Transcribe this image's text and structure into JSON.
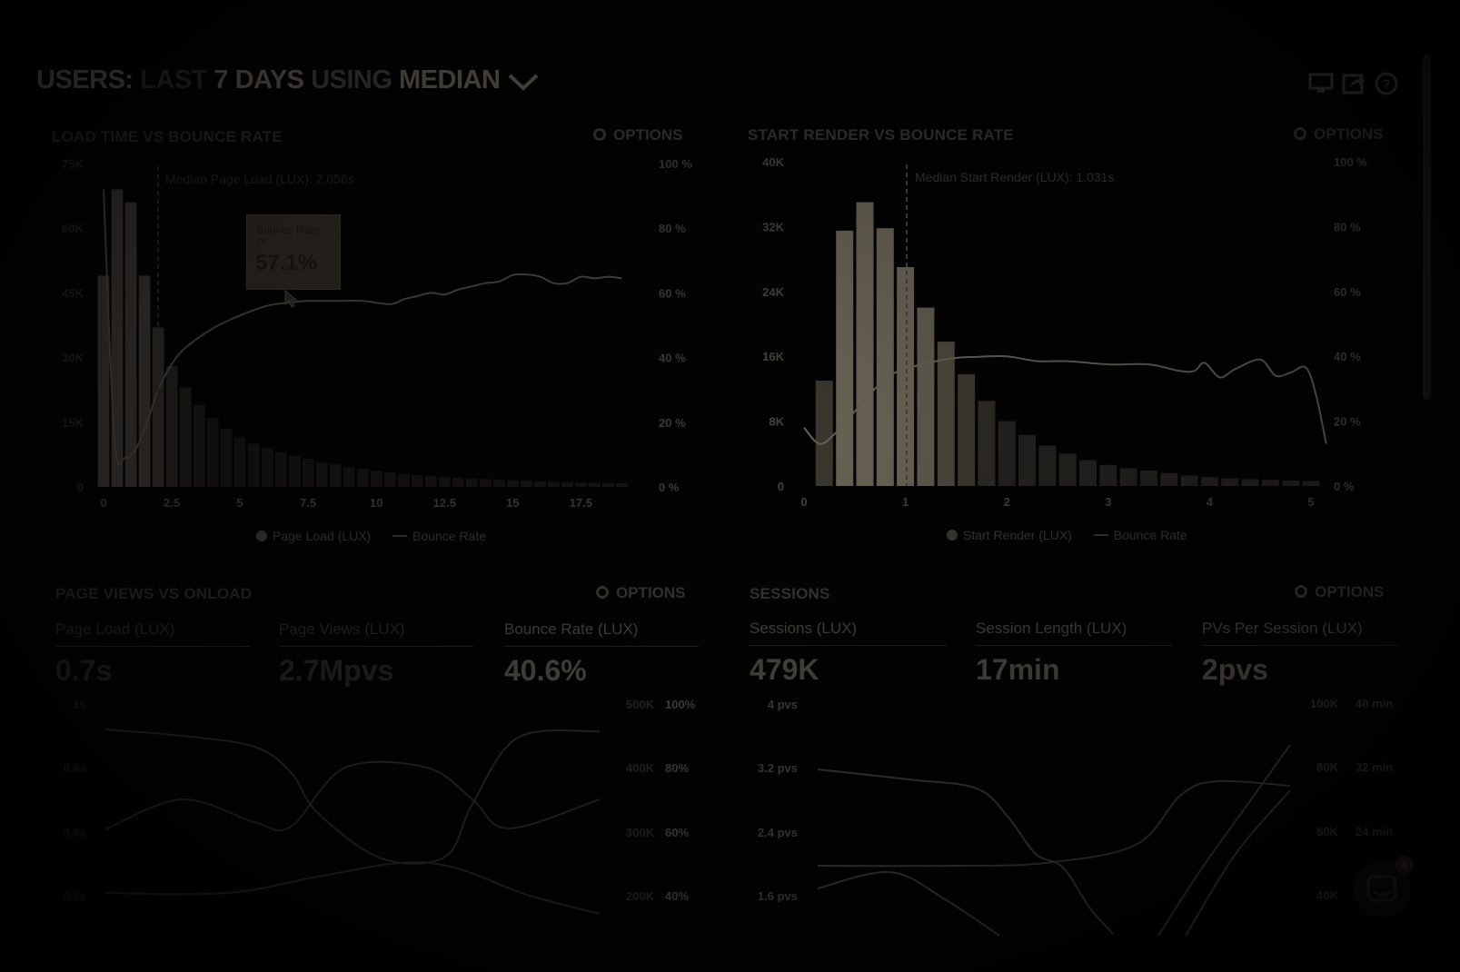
{
  "header": {
    "prefix": "USERS:",
    "range": "LAST",
    "days": "7 DAYS",
    "using": "USING",
    "aggregate": "MEDIAN"
  },
  "icons": [
    "monitor-icon",
    "share-icon",
    "help-icon"
  ],
  "options_label": "OPTIONS",
  "panels": {
    "load_time": {
      "title": "LOAD TIME VS BOUNCE RATE",
      "median_note": "Median Page Load (LUX): 2.056s",
      "tooltip": {
        "title": "Bounce Rate",
        "sub": "7s",
        "value": "57.1%"
      },
      "legend": [
        "Page Load (LUX)",
        "Bounce Rate"
      ]
    },
    "start_render": {
      "title": "START RENDER VS BOUNCE RATE",
      "median_note": "Median Start Render (LUX): 1.031s",
      "legend": [
        "Start Render (LUX)",
        "Bounce Rate"
      ]
    },
    "page_views": {
      "title": "PAGE VIEWS VS ONLOAD",
      "metrics": [
        {
          "label": "Page Load (LUX)",
          "value": "0.7s"
        },
        {
          "label": "Page Views (LUX)",
          "value": "2.7Mpvs"
        },
        {
          "label": "Bounce Rate (LUX)",
          "value": "40.6%"
        }
      ]
    },
    "sessions": {
      "title": "SESSIONS",
      "metrics": [
        {
          "label": "Sessions (LUX)",
          "value": "479K"
        },
        {
          "label": "Session Length (LUX)",
          "value": "17min"
        },
        {
          "label": "PVs Per Session (LUX)",
          "value": "2pvs"
        }
      ]
    }
  },
  "chat_badge": "4",
  "chart_data": [
    {
      "type": "bar",
      "title": "LOAD TIME VS BOUNCE RATE",
      "x_ticks": [
        "0",
        "2.5",
        "5",
        "7.5",
        "10",
        "12.5",
        "15",
        "17.5"
      ],
      "y_ticks_left": [
        "0",
        "15K",
        "30K",
        "45K",
        "60K",
        "75K"
      ],
      "y_ticks_right": [
        "0 %",
        "20 %",
        "40 %",
        "60 %",
        "80 %",
        "100 %"
      ],
      "ylim": [
        0,
        75000
      ],
      "y2lim": [
        0,
        100
      ],
      "xlim": [
        0,
        19.75
      ],
      "bar_width": 0.5,
      "series": [
        {
          "name": "Page Load (LUX)",
          "x": [
            0,
            0.5,
            1,
            1.5,
            2,
            2.5,
            3,
            3.5,
            4,
            4.5,
            5,
            5.5,
            6,
            6.5,
            7,
            7.5,
            8,
            8.5,
            9,
            9.5,
            10,
            10.5,
            11,
            11.5,
            12,
            12.5,
            13,
            13.5,
            14,
            14.5,
            15,
            15.5,
            16,
            16.5,
            17,
            17.5,
            18,
            18.5,
            19
          ],
          "values": [
            49000,
            69000,
            66000,
            49000,
            37000,
            28000,
            23000,
            19000,
            16000,
            13500,
            11500,
            10000,
            9000,
            8000,
            7200,
            6500,
            5800,
            5200,
            4600,
            4100,
            3700,
            3300,
            3000,
            2700,
            2500,
            2300,
            2100,
            1900,
            1800,
            1650,
            1500,
            1400,
            1300,
            1200,
            1100,
            1000,
            950,
            900,
            850
          ]
        },
        {
          "name": "Bounce Rate",
          "axis": "right",
          "x": [
            0,
            0.4,
            0.8,
            1.2,
            1.6,
            2,
            2.5,
            3,
            4,
            5,
            6,
            6.8,
            7.5,
            8.5,
            9.5,
            10.5,
            11,
            11.5,
            12,
            12.5,
            13,
            13.5,
            14,
            14.5,
            15,
            15.5,
            16,
            16.5,
            17,
            17.5,
            18,
            18.5,
            19
          ],
          "values": [
            92,
            15,
            9,
            12,
            20,
            30,
            38,
            43,
            49,
            53,
            56,
            57,
            57.5,
            57.5,
            57.5,
            56.5,
            58,
            59,
            60,
            59.5,
            61,
            62,
            63,
            63.5,
            65.5,
            65.7,
            65,
            63,
            63,
            65,
            64.5,
            65,
            64.5
          ]
        }
      ]
    },
    {
      "type": "bar",
      "title": "START RENDER VS BOUNCE RATE",
      "x_ticks": [
        "0",
        "1",
        "2",
        "3",
        "4",
        "5"
      ],
      "y_ticks_left": [
        "0",
        "8K",
        "16K",
        "24K",
        "32K",
        "40K"
      ],
      "y_ticks_right": [
        "0 %",
        "20 %",
        "40 %",
        "60 %",
        "80 %",
        "100 %"
      ],
      "ylim": [
        0,
        40000
      ],
      "y2lim": [
        0,
        100
      ],
      "xlim": [
        0,
        5
      ],
      "bar_width": 0.2,
      "series": [
        {
          "name": "Start Render (LUX)",
          "x": [
            0.2,
            0.4,
            0.6,
            0.8,
            1.0,
            1.2,
            1.4,
            1.6,
            1.8,
            2.0,
            2.2,
            2.4,
            2.6,
            2.8,
            3.0,
            3.2,
            3.4,
            3.6,
            3.8,
            4.0,
            4.2,
            4.4,
            4.6,
            4.8,
            5.0
          ],
          "values": [
            13000,
            31500,
            35000,
            31800,
            27000,
            22000,
            17800,
            13800,
            10500,
            8000,
            6300,
            5000,
            4000,
            3200,
            2600,
            2200,
            1900,
            1600,
            1300,
            1100,
            950,
            850,
            750,
            680,
            620
          ]
        },
        {
          "name": "Bounce Rate",
          "axis": "right",
          "x": [
            0,
            0.15,
            0.3,
            0.5,
            0.7,
            0.9,
            1.1,
            1.3,
            1.5,
            1.7,
            2.0,
            2.3,
            2.6,
            3.0,
            3.4,
            3.7,
            3.85,
            3.95,
            4.1,
            4.25,
            4.5,
            4.65,
            4.8,
            4.95,
            5.05,
            5.15
          ],
          "values": [
            18,
            13,
            16,
            23,
            30,
            35,
            37,
            38.5,
            39.5,
            39.8,
            40,
            38.5,
            38.5,
            37.5,
            37.5,
            35.5,
            35.5,
            38,
            33.5,
            36,
            39,
            34,
            35,
            36.5,
            28,
            13
          ]
        }
      ]
    },
    {
      "type": "line",
      "title": "PAGE VIEWS VS ONLOAD",
      "y_ticks_left": [
        "0.4s",
        "0.6s",
        "0.8s",
        "1s"
      ],
      "y_ticks_right_1": [
        "200K",
        "300K",
        "400K",
        "500K"
      ],
      "y_ticks_right_2": [
        "40%",
        "60%",
        "80%",
        "100%"
      ]
    },
    {
      "type": "line",
      "title": "SESSIONS",
      "y_ticks_left": [
        "1.6 pvs",
        "2.4 pvs",
        "3.2 pvs",
        "4 pvs"
      ],
      "y_ticks_right_1": [
        "40K",
        "60K",
        "80K",
        "100K"
      ],
      "y_ticks_right_2": [
        "24 min",
        "32 min",
        "40 min"
      ]
    }
  ]
}
